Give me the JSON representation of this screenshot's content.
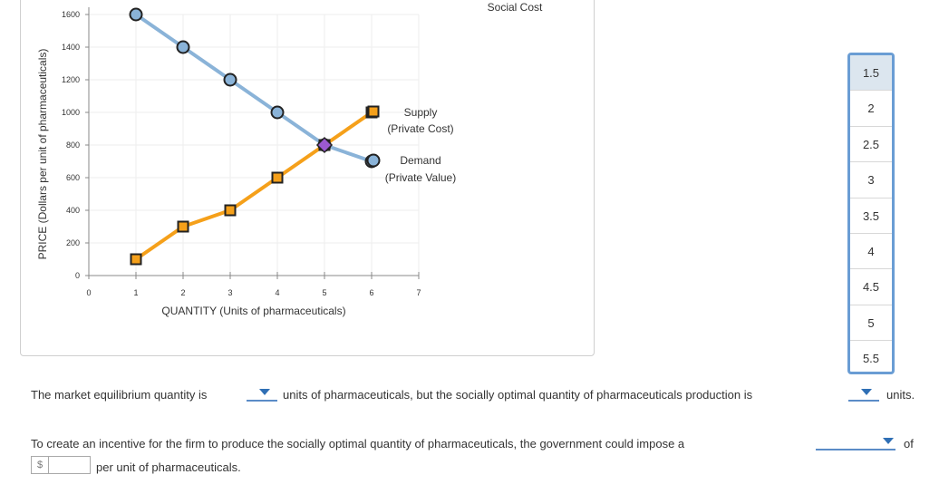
{
  "chart_data": {
    "type": "line",
    "xlabel": "QUANTITY (Units of pharmaceuticals)",
    "ylabel": "PRICE (Dollars per unit of pharmaceuticals)",
    "xlim": [
      0,
      7
    ],
    "ylim": [
      0,
      1600
    ],
    "x_ticks": [
      0,
      1,
      2,
      3,
      4,
      5,
      6,
      7
    ],
    "y_ticks": [
      0,
      200,
      400,
      600,
      800,
      1000,
      1200,
      1400,
      1600
    ],
    "series": [
      {
        "name": "Demand (Private Value)",
        "legend_line1": "Demand",
        "legend_line2": "(Private Value)",
        "color": "#8ab3d8",
        "marker": "circle",
        "marker_fill": "#8ab3d8",
        "x": [
          1,
          2,
          3,
          4,
          5,
          6
        ],
        "y": [
          1600,
          1400,
          1200,
          1000,
          800,
          700
        ]
      },
      {
        "name": "Supply (Private Cost)",
        "legend_line1": "Supply",
        "legend_line2": "(Private Cost)",
        "color": "#f5a01a",
        "marker": "square",
        "marker_fill": "#f5a01a",
        "x": [
          1,
          2,
          3,
          4,
          5,
          6
        ],
        "y": [
          100,
          300,
          400,
          600,
          800,
          1000
        ]
      }
    ],
    "equilibrium": {
      "x": 5,
      "y": 800,
      "color": "#9b59d0"
    },
    "social_cost_label": "Social Cost"
  },
  "dropdown": {
    "options": [
      "1.5",
      "2",
      "2.5",
      "3",
      "3.5",
      "4",
      "4.5",
      "5",
      "5.5"
    ],
    "highlighted": "1.5"
  },
  "question": {
    "line1_part1": "The market equilibrium quantity is",
    "line1_part2": "units of pharmaceuticals, but the socially optimal quantity of pharmaceuticals production is",
    "line1_part3": "units.",
    "line2_part1": "To create an incentive for the firm to produce the socially optimal quantity of pharmaceuticals, the government could impose a",
    "line2_part2": "of",
    "currency_symbol": "$",
    "line3_part1": "per unit of pharmaceuticals."
  },
  "colors": {
    "accent": "#2f6fb5",
    "dropdown_border": "#6a9dd4"
  }
}
